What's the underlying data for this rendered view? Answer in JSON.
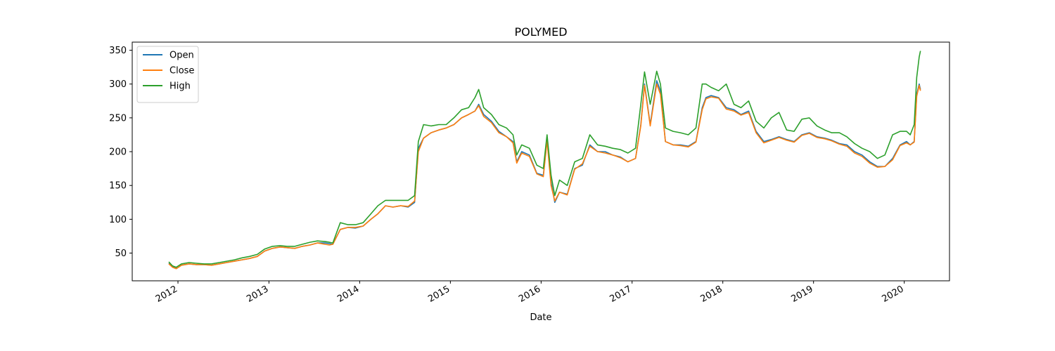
{
  "chart_data": {
    "type": "line",
    "title": "POLYMED",
    "xlabel": "Date",
    "ylabel": "",
    "x_type": "date",
    "xlim": [
      "2011-07-01",
      "2020-07-01"
    ],
    "ylim": [
      9,
      362
    ],
    "yticks": [
      50,
      100,
      150,
      200,
      250,
      300,
      350
    ],
    "xticks": [
      "2012",
      "2013",
      "2014",
      "2015",
      "2016",
      "2017",
      "2018",
      "2019",
      "2020"
    ],
    "legend_position": "upper left",
    "grid": false,
    "colors": {
      "Open": "#1f77b4",
      "Close": "#ff7f0e",
      "High": "#2ca02c"
    },
    "dates": [
      "2011-11-25",
      "2011-12-10",
      "2011-12-25",
      "2012-01-15",
      "2012-02-15",
      "2012-03-15",
      "2012-04-15",
      "2012-05-15",
      "2012-06-15",
      "2012-07-15",
      "2012-08-15",
      "2012-09-15",
      "2012-10-15",
      "2012-11-15",
      "2012-12-15",
      "2013-01-15",
      "2013-02-15",
      "2013-03-15",
      "2013-04-15",
      "2013-05-15",
      "2013-06-15",
      "2013-07-15",
      "2013-08-15",
      "2013-09-01",
      "2013-09-15",
      "2013-10-15",
      "2013-11-15",
      "2013-12-15",
      "2014-01-15",
      "2014-02-15",
      "2014-03-15",
      "2014-04-15",
      "2014-05-15",
      "2014-06-15",
      "2014-07-15",
      "2014-08-10",
      "2014-08-25",
      "2014-09-15",
      "2014-10-15",
      "2014-11-15",
      "2014-12-15",
      "2015-01-15",
      "2015-02-15",
      "2015-03-15",
      "2015-04-10",
      "2015-04-25",
      "2015-05-15",
      "2015-06-15",
      "2015-07-15",
      "2015-08-15",
      "2015-09-10",
      "2015-09-25",
      "2015-10-15",
      "2015-11-15",
      "2015-12-15",
      "2016-01-10",
      "2016-01-25",
      "2016-02-10",
      "2016-02-25",
      "2016-03-15",
      "2016-04-15",
      "2016-05-15",
      "2016-06-15",
      "2016-07-15",
      "2016-08-15",
      "2016-09-15",
      "2016-10-15",
      "2016-11-15",
      "2016-12-15",
      "2017-01-15",
      "2017-02-05",
      "2017-02-20",
      "2017-03-15",
      "2017-04-10",
      "2017-04-25",
      "2017-05-15",
      "2017-06-15",
      "2017-07-15",
      "2017-08-15",
      "2017-09-15",
      "2017-10-10",
      "2017-10-25",
      "2017-11-15",
      "2017-12-15",
      "2018-01-15",
      "2018-02-15",
      "2018-03-15",
      "2018-04-15",
      "2018-05-15",
      "2018-06-15",
      "2018-07-15",
      "2018-08-15",
      "2018-09-15",
      "2018-10-15",
      "2018-11-15",
      "2018-12-15",
      "2019-01-15",
      "2019-02-15",
      "2019-03-15",
      "2019-04-15",
      "2019-05-15",
      "2019-06-15",
      "2019-07-15",
      "2019-08-15",
      "2019-09-15",
      "2019-10-15",
      "2019-11-15",
      "2019-12-15",
      "2020-01-10",
      "2020-01-25",
      "2020-02-10",
      "2020-02-20",
      "2020-03-01",
      "2020-03-06"
    ],
    "series": [
      {
        "name": "Open",
        "values": [
          35,
          30,
          27,
          32,
          34,
          33,
          33,
          32,
          34,
          36,
          38,
          40,
          42,
          45,
          53,
          57,
          59,
          58,
          57,
          60,
          62,
          65,
          65,
          64,
          63,
          85,
          88,
          87,
          90,
          100,
          108,
          120,
          118,
          120,
          118,
          125,
          205,
          220,
          228,
          232,
          235,
          240,
          250,
          255,
          260,
          270,
          255,
          245,
          230,
          222,
          215,
          185,
          200,
          195,
          168,
          165,
          218,
          155,
          125,
          140,
          137,
          175,
          180,
          210,
          200,
          200,
          195,
          192,
          185,
          190,
          240,
          300,
          240,
          305,
          290,
          215,
          210,
          210,
          208,
          215,
          265,
          280,
          283,
          280,
          265,
          262,
          255,
          260,
          230,
          215,
          218,
          222,
          218,
          215,
          225,
          228,
          222,
          220,
          217,
          212,
          210,
          200,
          195,
          185,
          178,
          178,
          190,
          210,
          215,
          210,
          215,
          285,
          300,
          292
        ]
      },
      {
        "name": "Close",
        "values": [
          34,
          29,
          27,
          32,
          34,
          33,
          33,
          32,
          34,
          36,
          38,
          40,
          42,
          45,
          53,
          57,
          59,
          58,
          57,
          60,
          62,
          65,
          63,
          62,
          63,
          85,
          88,
          88,
          90,
          100,
          108,
          120,
          118,
          120,
          119,
          127,
          200,
          220,
          228,
          232,
          235,
          240,
          250,
          255,
          260,
          268,
          252,
          243,
          228,
          222,
          213,
          183,
          198,
          193,
          167,
          163,
          216,
          150,
          127,
          140,
          136,
          174,
          182,
          208,
          200,
          198,
          195,
          191,
          185,
          190,
          238,
          298,
          238,
          300,
          285,
          215,
          210,
          209,
          207,
          214,
          262,
          278,
          281,
          279,
          263,
          260,
          254,
          258,
          228,
          213,
          217,
          221,
          217,
          214,
          224,
          227,
          221,
          219,
          216,
          211,
          208,
          198,
          193,
          183,
          177,
          178,
          188,
          209,
          213,
          210,
          214,
          282,
          298,
          290
        ]
      },
      {
        "name": "High",
        "values": [
          37,
          31,
          29,
          34,
          36,
          35,
          34,
          34,
          36,
          38,
          40,
          43,
          45,
          48,
          56,
          60,
          61,
          60,
          60,
          63,
          66,
          68,
          67,
          66,
          65,
          95,
          92,
          92,
          95,
          108,
          120,
          128,
          128,
          128,
          128,
          135,
          215,
          240,
          238,
          240,
          240,
          250,
          262,
          265,
          280,
          292,
          265,
          255,
          240,
          235,
          225,
          195,
          210,
          205,
          180,
          175,
          225,
          165,
          135,
          158,
          150,
          185,
          190,
          225,
          210,
          208,
          205,
          203,
          198,
          205,
          270,
          318,
          270,
          319,
          300,
          235,
          230,
          228,
          225,
          235,
          300,
          300,
          295,
          290,
          300,
          270,
          265,
          275,
          245,
          235,
          250,
          258,
          232,
          230,
          248,
          250,
          238,
          232,
          228,
          228,
          222,
          212,
          205,
          200,
          190,
          195,
          225,
          230,
          230,
          225,
          240,
          310,
          340,
          349
        ]
      }
    ]
  }
}
